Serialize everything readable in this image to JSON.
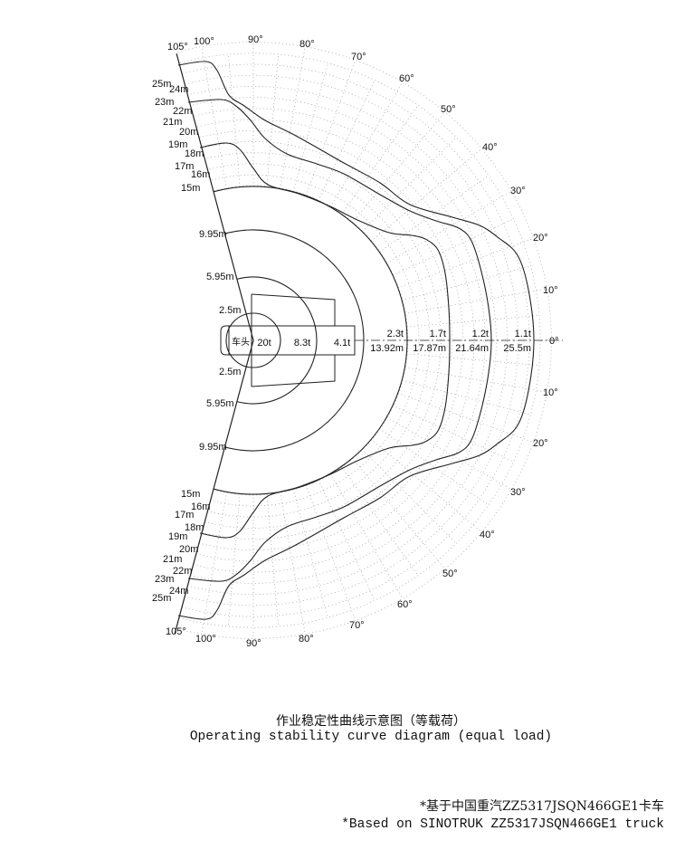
{
  "diagram": {
    "angle_labels_top": [
      "105°",
      "100°",
      "90°",
      "80°",
      "70°",
      "60°",
      "50°",
      "40°",
      "30°",
      "20°",
      "10°",
      "0°"
    ],
    "angle_labels_bottom": [
      "10°",
      "20°",
      "30°",
      "40°",
      "50°",
      "60°",
      "70°",
      "80°",
      "90°",
      "100°",
      "105°"
    ],
    "radius_labels": [
      "25m",
      "24m",
      "23m",
      "22m",
      "21m",
      "20m",
      "19m",
      "18m",
      "17m",
      "16m",
      "15m",
      "9.95m",
      "5.95m",
      "2.5m"
    ],
    "cab_label": "车头",
    "inner_loads": [
      "20t",
      "8.3t",
      "4.1t"
    ],
    "outer_loads": [
      {
        "load": "2.3t",
        "radius": "13.92m"
      },
      {
        "load": "1.7t",
        "radius": "17.87m"
      },
      {
        "load": "1.2t",
        "radius": "21.64m"
      },
      {
        "load": "1.1t",
        "radius": "25.5m"
      }
    ],
    "line_color": "#222222",
    "grid_color": "#9a9a9a"
  },
  "caption": {
    "title_cn": "作业稳定性曲线示意图（等载荷）",
    "title_en": "Operating stability curve diagram (equal load)"
  },
  "footnote": {
    "cn": "*基于中国重汽ZZ5317JSQN466GE1卡车",
    "en": "*Based on SINOTRUK ZZ5317JSQN466GE1 truck"
  }
}
